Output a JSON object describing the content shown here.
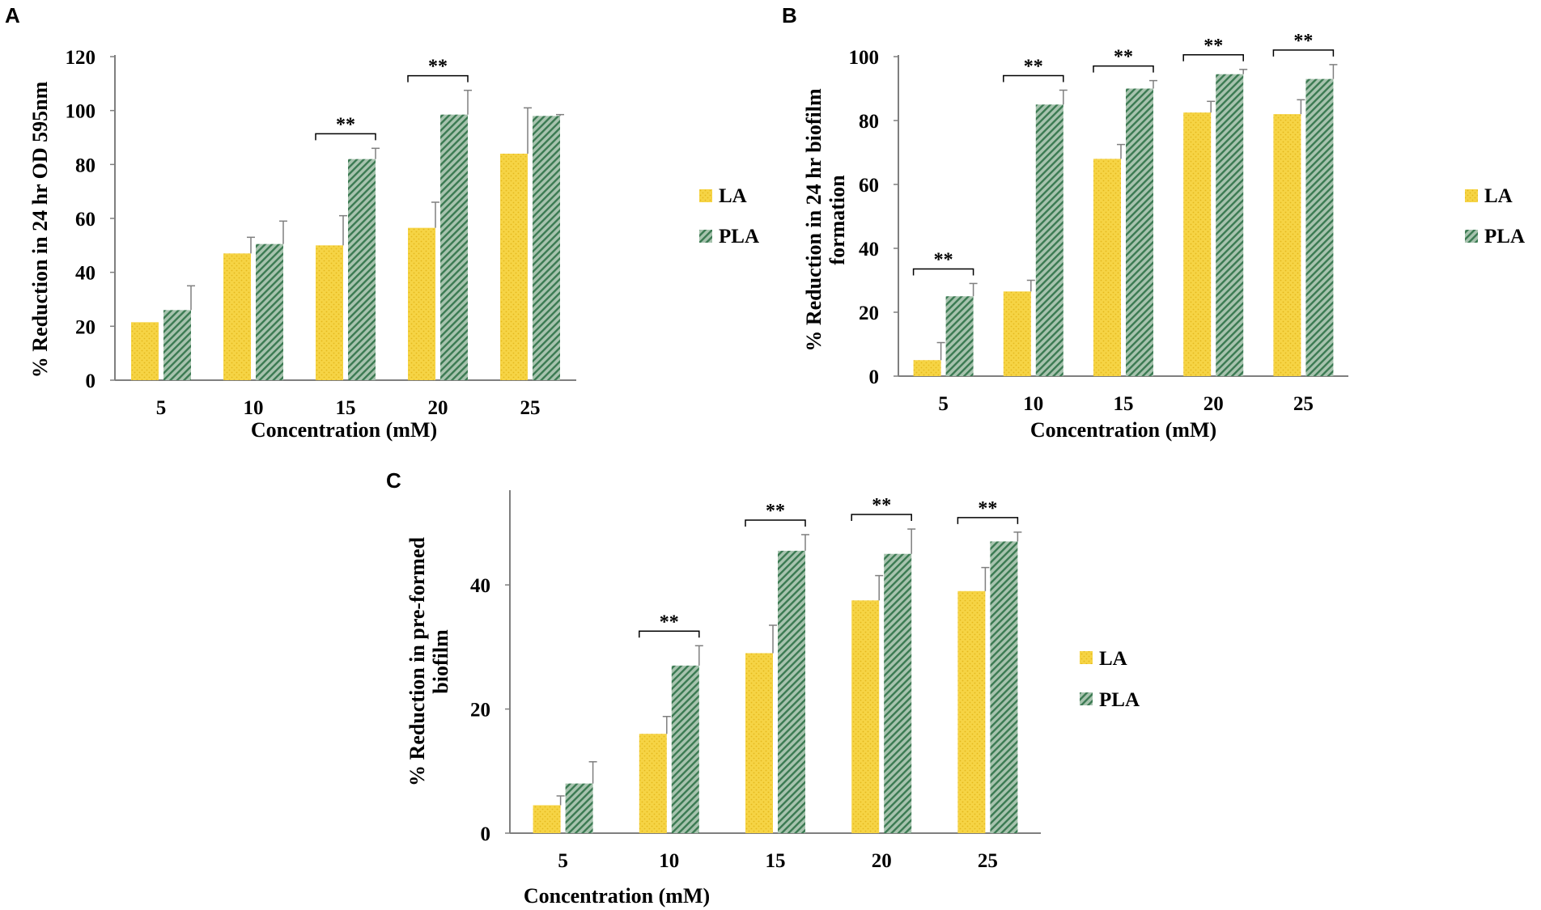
{
  "colors": {
    "la": "#f6d445",
    "la_dot": "#e5b81c",
    "pla": "#a7c3ae",
    "pla_stripe": "#3b7a52",
    "axis": "#7f7f7f",
    "text": "#000000"
  },
  "legend": {
    "la": "LA",
    "pla": "PLA"
  },
  "chart_data": [
    {
      "panel": "A",
      "type": "bar",
      "title": "",
      "xlabel": "Concentration (mM)",
      "ylabel": "% Reduction in 24 hr OD 595nm",
      "categories": [
        "5",
        "10",
        "15",
        "20",
        "25"
      ],
      "ylim": [
        0,
        120
      ],
      "yticks": [
        0,
        20,
        40,
        60,
        80,
        100,
        120
      ],
      "series": [
        {
          "name": "LA",
          "values": [
            21.5,
            47,
            50,
            56.5,
            84
          ],
          "errors": [
            0,
            6,
            11,
            9.5,
            17
          ]
        },
        {
          "name": "PLA",
          "values": [
            26,
            50.5,
            82,
            98.5,
            98
          ],
          "errors": [
            9,
            8.5,
            4,
            9,
            0.5
          ]
        }
      ],
      "significance": [
        {
          "category": "15",
          "label": "**"
        },
        {
          "category": "20",
          "label": "**"
        }
      ],
      "legend_position": "right"
    },
    {
      "panel": "B",
      "type": "bar",
      "title": "",
      "xlabel": "Concentration (mM)",
      "ylabel": "% Reduction in 24 hr biofilm formation",
      "ylabel_lines": [
        "% Reduction in 24 hr biofilm",
        "formation"
      ],
      "categories": [
        "5",
        "10",
        "15",
        "20",
        "25"
      ],
      "ylim": [
        0,
        100
      ],
      "yticks": [
        0,
        20,
        40,
        60,
        80,
        100
      ],
      "series": [
        {
          "name": "LA",
          "values": [
            5,
            26.5,
            68,
            82.5,
            82
          ],
          "errors": [
            5.5,
            3.5,
            4.5,
            3.5,
            4.5
          ]
        },
        {
          "name": "PLA",
          "values": [
            25,
            85,
            90,
            94.5,
            93
          ],
          "errors": [
            4,
            4.5,
            2.5,
            1.5,
            4.5
          ]
        }
      ],
      "significance": [
        {
          "category": "5",
          "label": "**"
        },
        {
          "category": "10",
          "label": "**"
        },
        {
          "category": "15",
          "label": "**"
        },
        {
          "category": "20",
          "label": "**"
        },
        {
          "category": "25",
          "label": "**"
        }
      ],
      "legend_position": "right"
    },
    {
      "panel": "C",
      "type": "bar",
      "title": "",
      "xlabel": "Concentration (mM)",
      "ylabel": "% Reduction in pre-formed biofilm",
      "ylabel_lines": [
        "% Reduction in pre-formed",
        "biofilm"
      ],
      "categories": [
        "5",
        "10",
        "15",
        "20",
        "25"
      ],
      "ylim": [
        0,
        55
      ],
      "yticks": [
        0,
        20,
        40
      ],
      "series": [
        {
          "name": "LA",
          "values": [
            4.5,
            16,
            29,
            37.5,
            39
          ],
          "errors": [
            1.5,
            2.8,
            4.5,
            4,
            3.8
          ]
        },
        {
          "name": "PLA",
          "values": [
            8,
            27,
            45.5,
            45,
            47
          ],
          "errors": [
            3.5,
            3.2,
            2.6,
            4,
            1.5
          ]
        }
      ],
      "significance": [
        {
          "category": "10",
          "label": "**"
        },
        {
          "category": "15",
          "label": "**"
        },
        {
          "category": "20",
          "label": "**"
        },
        {
          "category": "25",
          "label": "**"
        }
      ],
      "legend_position": "right"
    }
  ]
}
